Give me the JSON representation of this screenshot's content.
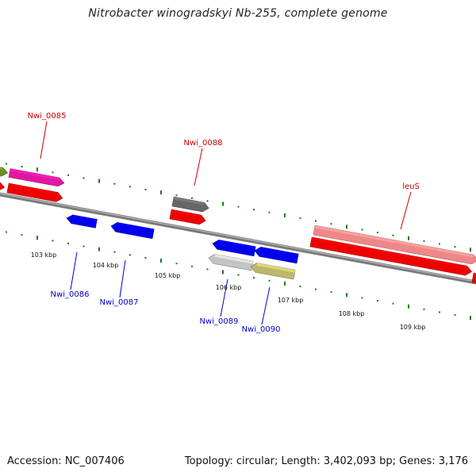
{
  "title": "Nitrobacter winogradskyi Nb-255, complete genome",
  "footer": {
    "accession": "Accession: NC_007406",
    "summary": "Topology: circular; Length: 3,402,093 bp; Genes: 3,176"
  },
  "colors": {
    "backbone": "#7a7a7a",
    "tick": "#1a7a1a",
    "label_forward": "#cc0000",
    "label_reverse": "#0000cc"
  },
  "tick_labels": [
    "103 kbp",
    "104 kbp",
    "105 kbp",
    "106 kbp",
    "107 kbp",
    "108 kbp",
    "109 kbp"
  ],
  "genes": [
    {
      "name": "",
      "strand": "forward",
      "color": "#6b8e23"
    },
    {
      "name": "Nwi_0085",
      "strand": "forward",
      "color": "#e0189e"
    },
    {
      "name": "",
      "strand": "forward",
      "color": "#ee0000"
    },
    {
      "name": "",
      "strand": "forward",
      "color": "#ee0000"
    },
    {
      "name": "Nwi_0088",
      "strand": "forward",
      "color": "#666666"
    },
    {
      "name": "",
      "strand": "forward",
      "color": "#ee0000"
    },
    {
      "name": "leuS",
      "strand": "forward",
      "color": "#ee8888"
    },
    {
      "name": "",
      "strand": "forward",
      "color": "#ee0000"
    },
    {
      "name": "",
      "strand": "forward",
      "color": "#ee0000"
    },
    {
      "name": "Nwi_0086",
      "strand": "reverse",
      "color": "#0000ee"
    },
    {
      "name": "Nwi_0087",
      "strand": "reverse",
      "color": "#0000ee"
    },
    {
      "name": "",
      "strand": "reverse",
      "color": "#0000ee"
    },
    {
      "name": "",
      "strand": "reverse",
      "color": "#0000ee"
    },
    {
      "name": "Nwi_0089",
      "strand": "reverse",
      "color": "#c4c4c4"
    },
    {
      "name": "Nwi_0090",
      "strand": "reverse",
      "color": "#bdb76b"
    }
  ]
}
